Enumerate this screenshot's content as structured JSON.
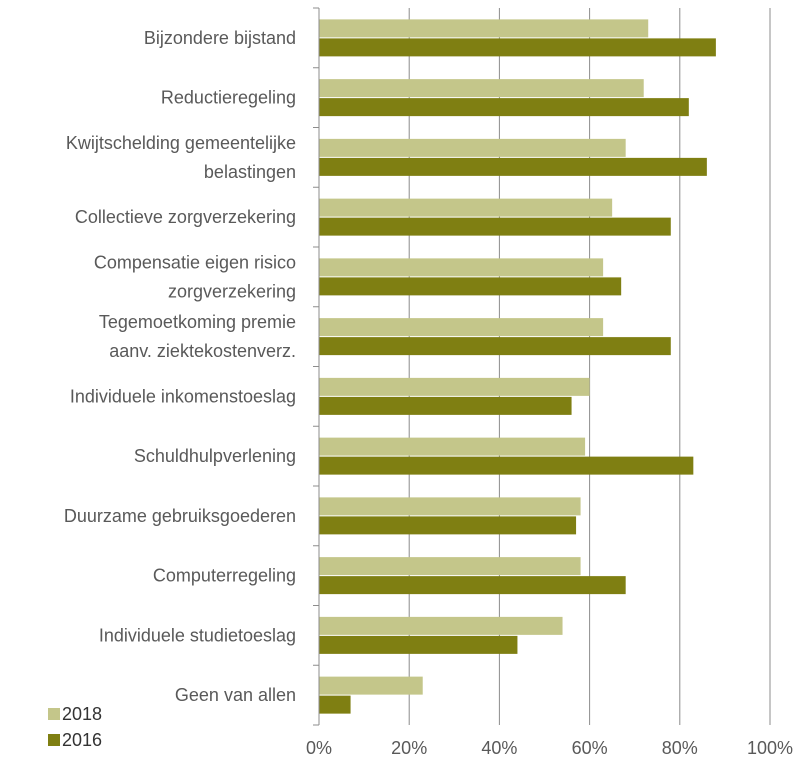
{
  "chart_data": {
    "type": "bar",
    "orientation": "horizontal",
    "categories": [
      [
        "Bijzondere bijstand"
      ],
      [
        "Reductieregeling"
      ],
      [
        "Kwijtschelding gemeentelijke",
        "belastingen"
      ],
      [
        "Collectieve zorgverzekering"
      ],
      [
        "Compensatie eigen risico",
        "zorgverzekering"
      ],
      [
        "Tegemoetkoming premie",
        "aanv. ziektekostenverz."
      ],
      [
        "Individuele inkomenstoeslag"
      ],
      [
        "Schuldhulpverlening"
      ],
      [
        "Duurzame gebruiksgoederen"
      ],
      [
        "Computerregeling"
      ],
      [
        "Individuele studietoeslag"
      ],
      [
        "Geen van allen"
      ]
    ],
    "series": [
      {
        "name": "2018",
        "color": "#c4c68a",
        "values": [
          0.73,
          0.72,
          0.68,
          0.65,
          0.63,
          0.63,
          0.6,
          0.59,
          0.58,
          0.58,
          0.54,
          0.23
        ]
      },
      {
        "name": "2016",
        "color": "#7f7f12",
        "values": [
          0.88,
          0.82,
          0.86,
          0.78,
          0.67,
          0.78,
          0.56,
          0.83,
          0.57,
          0.68,
          0.44,
          0.07
        ]
      }
    ],
    "xlim": [
      0,
      1
    ],
    "xticks": [
      "0%",
      "20%",
      "40%",
      "60%",
      "80%",
      "100%"
    ],
    "grid": true,
    "legend": "bottom-left"
  }
}
